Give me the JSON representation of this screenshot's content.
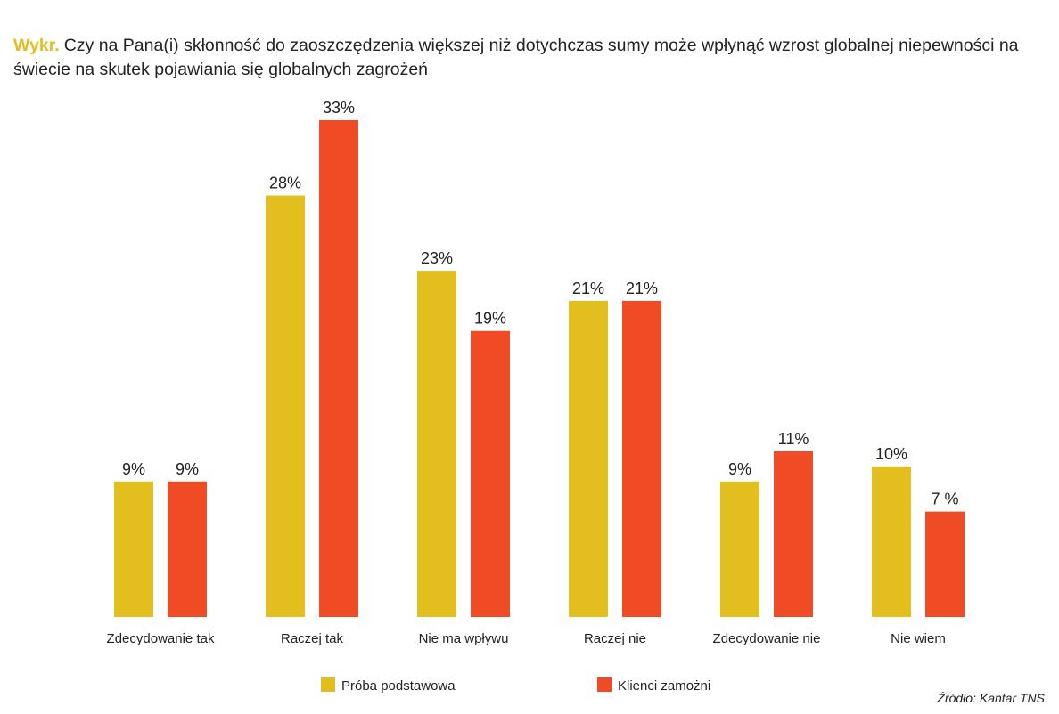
{
  "header": {
    "prefix": "Wykr.",
    "title": "Czy na Pana(i) skłonność do zaoszczędzenia większej niż dotychczas sumy może wpłynąć wzrost globalnej niepewności na świecie na skutek pojawiania się globalnych zagrożeń"
  },
  "source": "Źródło: Kantar TNS",
  "colors": {
    "prefix": "#e2bf1f",
    "series_1": "#e2bf1f",
    "series_2": "#ef4b24"
  },
  "chart_data": {
    "type": "bar",
    "categories": [
      "Zdecydowanie tak",
      "Raczej tak",
      "Nie ma wpływu",
      "Raczej nie",
      "Zdecydowanie nie",
      "Nie wiem"
    ],
    "series": [
      {
        "name": "Próba podstawowa",
        "color": "#e2bf1f",
        "values": [
          9,
          28,
          23,
          21,
          9,
          10
        ],
        "labels": [
          "9%",
          "28%",
          "23%",
          "21%",
          "9%",
          "10%"
        ]
      },
      {
        "name": "Klienci zamożni",
        "color": "#ef4b24",
        "values": [
          9,
          33,
          19,
          21,
          11,
          7
        ],
        "labels": [
          "9%",
          "33%",
          "19%",
          "21%",
          "11%",
          "7 %"
        ]
      }
    ],
    "title": "",
    "xlabel": "",
    "ylabel": "",
    "ylim": [
      0,
      33
    ],
    "grid": false,
    "legend": "bottom"
  }
}
